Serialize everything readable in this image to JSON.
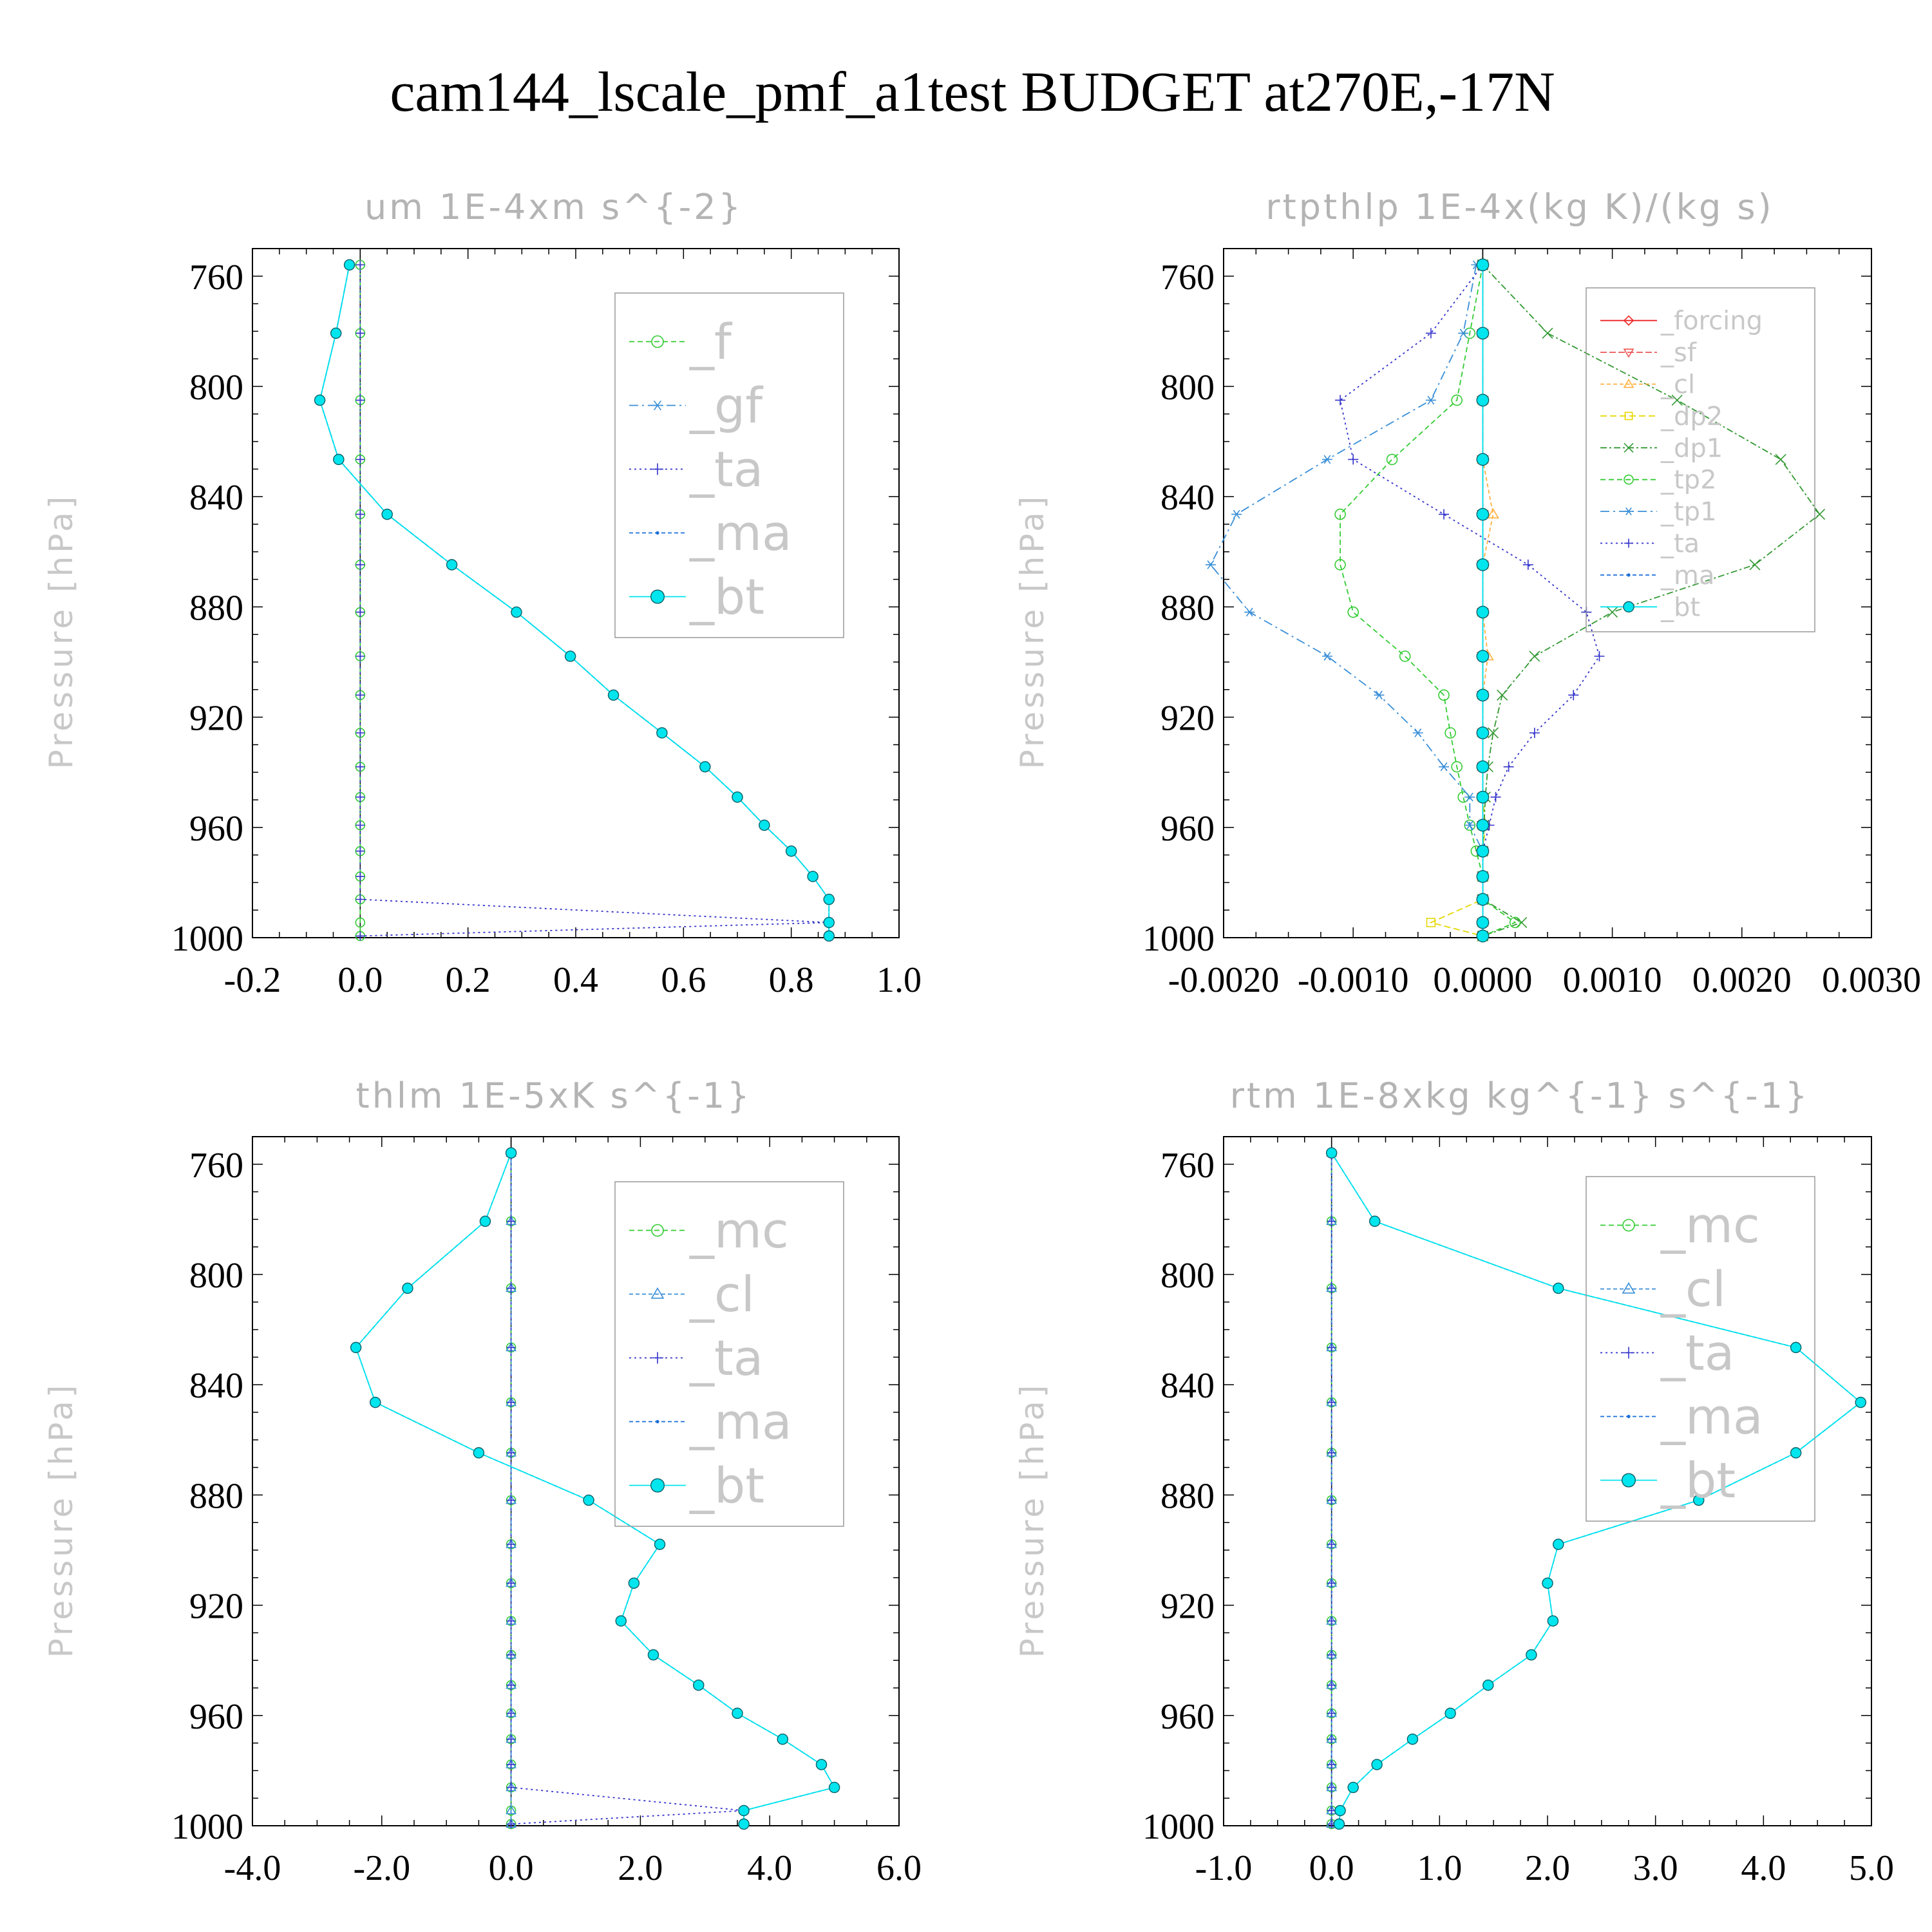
{
  "title": "cam144_lscale_pmf_a1test  BUDGET at270E,-17N",
  "colors": {
    "_f": "#33cc33",
    "_gf": "#3a8fd8",
    "_ta": "#3333cc",
    "_ma": "#1a6fd8",
    "_bt": "#00e5ee",
    "_forcing": "#ee2222",
    "_sf": "#ee5555",
    "_cl": "#ffb040",
    "_dp2": "#e6d800",
    "_dp1": "#339933",
    "_tp2": "#33cc33",
    "_tp1": "#3a8fd8",
    "_mc": "#33cc33",
    "_cl_b": "#3a8fd8"
  },
  "chart_data": [
    {
      "type": "line",
      "title": "um  1E-4xm s^{-2}",
      "ylabel": "Pressure [hPa]",
      "xlabel": "",
      "xlim": [
        -0.2,
        1.0
      ],
      "ylim": [
        1000,
        750
      ],
      "xticks": [
        -0.2,
        0.0,
        0.2,
        0.4,
        0.6,
        0.8,
        1.0
      ],
      "xtick_labels": [
        "-0.2",
        "0.0",
        "0.2",
        "0.4",
        "0.6",
        "0.8",
        "1.0"
      ],
      "yticks": [
        760,
        800,
        840,
        880,
        920,
        960,
        1000
      ],
      "legend": [
        "_f",
        "_gf",
        "_ta",
        "_ma",
        "_bt"
      ],
      "legend_position": "top-right",
      "y": [
        755.9,
        780.7,
        805.0,
        826.5,
        846.4,
        864.7,
        881.9,
        897.9,
        912.0,
        925.7,
        938.0,
        949.0,
        959.2,
        968.6,
        977.8,
        986.1,
        994.5,
        999.4
      ],
      "series": [
        {
          "name": "_f",
          "values": [
            0,
            0,
            0,
            0,
            0,
            0,
            0,
            0,
            0,
            0,
            0,
            0,
            0,
            0,
            0,
            0,
            0,
            0
          ]
        },
        {
          "name": "_gf",
          "values": [
            -0.02,
            -0.045,
            -0.075,
            -0.04,
            0.05,
            0.17,
            0.29,
            0.39,
            0.47,
            0.56,
            0.64,
            0.7,
            0.75,
            0.8,
            0.84,
            0.87,
            0.87,
            0.87
          ]
        },
        {
          "name": "_ta",
          "values": [
            0,
            0,
            0,
            0,
            0,
            0,
            0,
            0,
            0,
            0,
            0,
            0,
            0,
            0,
            0,
            0,
            0.87,
            0
          ]
        },
        {
          "name": "_ma",
          "values": [
            -0.02,
            -0.045,
            -0.075,
            -0.04,
            0.05,
            0.17,
            0.29,
            0.39,
            0.47,
            0.56,
            0.64,
            0.7,
            0.75,
            0.8,
            0.84,
            0.87,
            0.87,
            0.87
          ]
        },
        {
          "name": "_bt",
          "values": [
            -0.02,
            -0.045,
            -0.075,
            -0.04,
            0.05,
            0.17,
            0.29,
            0.39,
            0.47,
            0.56,
            0.64,
            0.7,
            0.75,
            0.8,
            0.84,
            0.87,
            0.87,
            0.87
          ]
        }
      ]
    },
    {
      "type": "line",
      "title": "rtpthlp  1E-4x(kg K)/(kg s)",
      "ylabel": "Pressure [hPa]",
      "xlabel": "",
      "xlim": [
        -0.002,
        0.003
      ],
      "ylim": [
        1000,
        750
      ],
      "xticks": [
        -0.002,
        -0.001,
        0.0,
        0.001,
        0.002,
        0.003
      ],
      "xtick_labels": [
        "-0.0020",
        "-0.0010",
        "0.0000",
        "0.0010",
        "0.0020",
        "0.0030"
      ],
      "yticks": [
        760,
        800,
        840,
        880,
        920,
        960,
        1000
      ],
      "legend": [
        "_forcing",
        "_sf",
        "_cl",
        "_dp2",
        "_dp1",
        "_tp2",
        "_tp1",
        "_ta",
        "_ma",
        "_bt"
      ],
      "legend_position": "top-right",
      "y": [
        755.9,
        780.7,
        805.0,
        826.5,
        846.4,
        864.7,
        881.9,
        897.9,
        912.0,
        925.7,
        938.0,
        949.0,
        959.2,
        968.6,
        977.8,
        986.1,
        994.5,
        999.4
      ],
      "series": [
        {
          "name": "_forcing",
          "values": [
            0,
            0,
            0,
            0,
            0,
            0,
            0,
            0,
            0,
            0,
            0,
            0,
            0,
            0,
            0,
            0,
            0,
            0
          ]
        },
        {
          "name": "_sf",
          "values": [
            0,
            0,
            0,
            0,
            0,
            0,
            0,
            0,
            0,
            0,
            0,
            0,
            0,
            0,
            0,
            0,
            0,
            0
          ]
        },
        {
          "name": "_cl",
          "values": [
            0,
            0,
            0,
            0,
            8e-05,
            0,
            0,
            4e-05,
            0,
            0,
            0,
            0,
            0,
            0,
            0,
            0,
            0,
            0
          ]
        },
        {
          "name": "_dp2",
          "values": [
            0,
            0,
            0,
            0,
            0,
            0,
            0,
            0,
            0,
            0,
            0,
            0,
            2e-05,
            0,
            0,
            0,
            -0.0004,
            0
          ]
        },
        {
          "name": "_dp1",
          "values": [
            0,
            0.0005,
            0.0015,
            0.0023,
            0.0026,
            0.0021,
            0.001,
            0.0004,
            0.00015,
            8e-05,
            4e-05,
            2e-05,
            1e-05,
            0,
            0,
            0,
            0.0003,
            0
          ]
        },
        {
          "name": "_tp2",
          "values": [
            0,
            -0.0001,
            -0.0002,
            -0.0007,
            -0.0011,
            -0.0011,
            -0.001,
            -0.0006,
            -0.0003,
            -0.00025,
            -0.0002,
            -0.00015,
            -0.0001,
            -5e-05,
            0,
            0,
            0.00025,
            0
          ]
        },
        {
          "name": "_tp1",
          "values": [
            -5e-05,
            -0.00015,
            -0.0004,
            -0.0012,
            -0.0019,
            -0.0021,
            -0.0018,
            -0.0012,
            -0.0008,
            -0.0005,
            -0.0003,
            -0.0001,
            -0.0001,
            0,
            0,
            0,
            0,
            0
          ]
        },
        {
          "name": "_ta",
          "values": [
            0,
            -0.0004,
            -0.0011,
            -0.001,
            -0.0003,
            0.00035,
            0.0008,
            0.0009,
            0.0007,
            0.0004,
            0.0002,
            0.0001,
            5e-05,
            0,
            0,
            0,
            0,
            0
          ]
        },
        {
          "name": "_ma",
          "values": [
            0,
            0,
            0,
            0,
            0,
            0,
            0,
            0,
            0,
            0,
            0,
            0,
            0,
            0,
            0,
            0,
            0,
            0
          ]
        },
        {
          "name": "_bt",
          "values": [
            0,
            0,
            0,
            0,
            0,
            0,
            0,
            0,
            0,
            0,
            0,
            0,
            0,
            0,
            0,
            0,
            0,
            0
          ]
        }
      ]
    },
    {
      "type": "line",
      "title": "thlm  1E-5xK s^{-1}",
      "ylabel": "Pressure [hPa]",
      "xlabel": "",
      "xlim": [
        -4.0,
        6.0
      ],
      "ylim": [
        1000,
        750
      ],
      "xticks": [
        -4.0,
        -2.0,
        0.0,
        2.0,
        4.0,
        6.0
      ],
      "xtick_labels": [
        "-4.0",
        "-2.0",
        "0.0",
        "2.0",
        "4.0",
        "6.0"
      ],
      "yticks": [
        760,
        800,
        840,
        880,
        920,
        960,
        1000
      ],
      "legend": [
        "_mc",
        "_cl",
        "_ta",
        "_ma",
        "_bt"
      ],
      "legend_position": "top-right",
      "y": [
        755.9,
        780.7,
        805.0,
        826.5,
        846.4,
        864.7,
        881.9,
        897.9,
        912.0,
        925.7,
        938.0,
        949.0,
        959.2,
        968.6,
        977.8,
        986.1,
        994.5,
        999.4
      ],
      "series": [
        {
          "name": "_mc",
          "values": [
            0,
            0,
            0,
            0,
            0,
            0,
            0,
            0,
            0,
            0,
            0,
            0,
            0,
            0,
            0,
            0,
            0,
            0
          ]
        },
        {
          "name": "_cl",
          "values": [
            0,
            0,
            0,
            0,
            0,
            0,
            0,
            0,
            0,
            0,
            0,
            0,
            0,
            0,
            0,
            0,
            0,
            0
          ]
        },
        {
          "name": "_ta",
          "values": [
            0,
            0,
            0,
            0,
            0,
            0,
            0,
            0,
            0,
            0,
            0,
            0,
            0,
            0,
            0,
            0,
            3.6,
            0
          ]
        },
        {
          "name": "_ma",
          "values": [
            0,
            -0.4,
            -1.6,
            -2.4,
            -2.1,
            -0.5,
            1.2,
            2.3,
            1.9,
            1.7,
            2.2,
            2.9,
            3.5,
            4.2,
            4.8,
            5.0,
            3.6,
            3.6
          ]
        },
        {
          "name": "_bt",
          "values": [
            0,
            -0.4,
            -1.6,
            -2.4,
            -2.1,
            -0.5,
            1.2,
            2.3,
            1.9,
            1.7,
            2.2,
            2.9,
            3.5,
            4.2,
            4.8,
            5.0,
            3.6,
            3.6
          ]
        }
      ]
    },
    {
      "type": "line",
      "title": "rtm  1E-8xkg kg^{-1} s^{-1}",
      "ylabel": "Pressure [hPa]",
      "xlabel": "",
      "xlim": [
        -1.0,
        5.0
      ],
      "ylim": [
        1000,
        750
      ],
      "xticks": [
        -1.0,
        0.0,
        1.0,
        2.0,
        3.0,
        4.0,
        5.0
      ],
      "xtick_labels": [
        "-1.0",
        "0.0",
        "1.0",
        "2.0",
        "3.0",
        "4.0",
        "5.0"
      ],
      "yticks": [
        760,
        800,
        840,
        880,
        920,
        960,
        1000
      ],
      "legend": [
        "_mc",
        "_cl",
        "_ta",
        "_ma",
        "_bt"
      ],
      "legend_position": "top-right",
      "y": [
        755.9,
        780.7,
        805.0,
        826.5,
        846.4,
        864.7,
        881.9,
        897.9,
        912.0,
        925.7,
        938.0,
        949.0,
        959.2,
        968.6,
        977.8,
        986.1,
        994.5,
        999.4
      ],
      "series": [
        {
          "name": "_mc",
          "values": [
            0,
            0,
            0,
            0,
            0,
            0,
            0,
            0,
            0,
            0,
            0,
            0,
            0,
            0,
            0,
            0,
            0,
            0
          ]
        },
        {
          "name": "_cl",
          "values": [
            0,
            0,
            0,
            0,
            0,
            0,
            0,
            0,
            0,
            0,
            0,
            0,
            0,
            0,
            0,
            0,
            0,
            0
          ]
        },
        {
          "name": "_ta",
          "values": [
            0,
            0,
            0,
            0,
            0,
            0,
            0,
            0,
            0,
            0,
            0,
            0,
            0,
            0,
            0,
            0,
            0,
            0
          ]
        },
        {
          "name": "_ma",
          "values": [
            0,
            0.4,
            2.1,
            4.3,
            4.9,
            4.3,
            3.4,
            2.1,
            2.0,
            2.05,
            1.85,
            1.45,
            1.1,
            0.75,
            0.42,
            0.2,
            0.08,
            0.07
          ]
        },
        {
          "name": "_bt",
          "values": [
            0,
            0.4,
            2.1,
            4.3,
            4.9,
            4.3,
            3.4,
            2.1,
            2.0,
            2.05,
            1.85,
            1.45,
            1.1,
            0.75,
            0.42,
            0.2,
            0.08,
            0.07
          ]
        }
      ]
    }
  ]
}
